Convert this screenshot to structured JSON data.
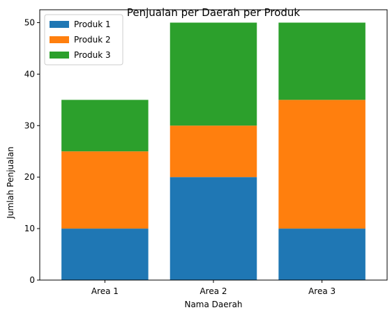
{
  "chart_data": {
    "type": "bar",
    "stacked": true,
    "title": "Penjualan per Daerah per Produk",
    "xlabel": "Nama Daerah",
    "ylabel": "Jumlah Penjualan",
    "categories": [
      "Area 1",
      "Area 2",
      "Area 3"
    ],
    "series": [
      {
        "name": "Produk 1",
        "values": [
          10,
          20,
          10
        ],
        "color": "#1f77b4"
      },
      {
        "name": "Produk 2",
        "values": [
          15,
          10,
          25
        ],
        "color": "#ff7f0e"
      },
      {
        "name": "Produk 3",
        "values": [
          10,
          20,
          15
        ],
        "color": "#2ca02c"
      }
    ],
    "ylim": [
      0,
      52.5
    ],
    "yticks": [
      0,
      10,
      20,
      30,
      40,
      50
    ],
    "grid": false,
    "legend_position": "top-left"
  }
}
